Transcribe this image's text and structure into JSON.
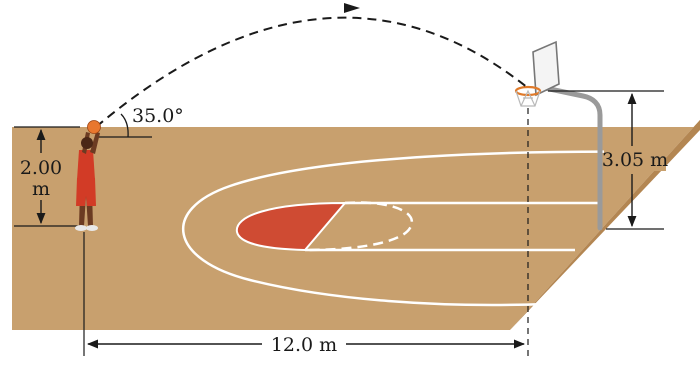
{
  "labels": {
    "launch_angle": "35.0°",
    "release_height_value": "2.00",
    "release_height_unit": "m",
    "rim_height": "3.05 m",
    "horizontal_distance": "12.0 m"
  },
  "colors": {
    "court": "#c8a06e",
    "court_edge": "#b38652",
    "paint": "#cf4b33",
    "court_lines": "#ffffff",
    "pole": "#9a9a9a",
    "rim": "#e07a2a",
    "ball": "#e8772e",
    "jersey": "#d23b26",
    "skin": "#6b3b22",
    "dimension_lines": "#1a1a1a"
  },
  "icons": {
    "player": "basketball-player-icon",
    "ball": "basketball-icon",
    "hoop": "basketball-hoop-icon"
  }
}
